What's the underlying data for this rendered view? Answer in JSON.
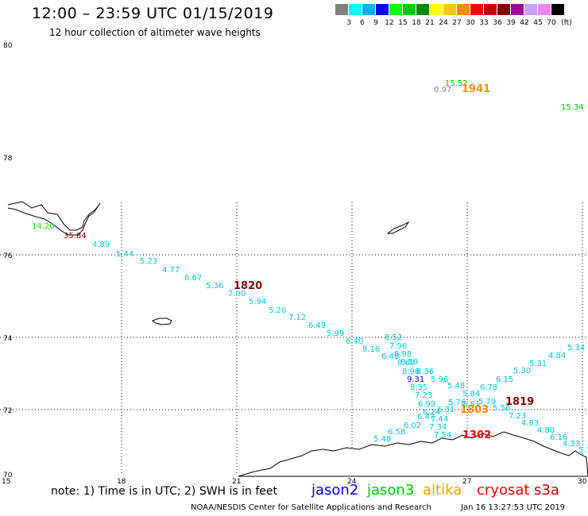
{
  "title": "12:00 – 23:59 UTC 01/15/2019",
  "subtitle": "12 hour collection of altimeter wave heights",
  "colorbar": {
    "unit": "(ft)",
    "bins": [
      {
        "label": "3",
        "color": "#808080"
      },
      {
        "label": "6",
        "color": "#00ffff"
      },
      {
        "label": "9",
        "color": "#00b0ff"
      },
      {
        "label": "12",
        "color": "#0000ff"
      },
      {
        "label": "15",
        "color": "#00ff00"
      },
      {
        "label": "18",
        "color": "#00c800"
      },
      {
        "label": "21",
        "color": "#008c00"
      },
      {
        "label": "24",
        "color": "#ffff00"
      },
      {
        "label": "27",
        "color": "#ffc800"
      },
      {
        "label": "30",
        "color": "#ff8c00"
      },
      {
        "label": "33",
        "color": "#ff0000"
      },
      {
        "label": "36",
        "color": "#c80000"
      },
      {
        "label": "39",
        "color": "#800000"
      },
      {
        "label": "42",
        "color": "#a000a0"
      },
      {
        "label": "45",
        "color": "#c8a0ff"
      },
      {
        "label": "70",
        "color": "#ff80ff"
      },
      {
        "label": "",
        "color": "#000000"
      }
    ]
  },
  "axes": {
    "lat_labels": [
      "80",
      "78",
      "76",
      "74",
      "72",
      "70"
    ],
    "lon_labels": [
      "15",
      "18",
      "21",
      "24",
      "27",
      "30"
    ]
  },
  "pass_times": [
    {
      "text": "1941",
      "color": "#ff8c00"
    },
    {
      "text": "1820",
      "color": "#800000"
    },
    {
      "text": "1819",
      "color": "#800000"
    },
    {
      "text": "1803",
      "color": "#ff8c00"
    },
    {
      "text": "1302",
      "color": "#ff0000"
    }
  ],
  "wave_heights": [
    {
      "text": "15.52",
      "color": "#00c800"
    },
    {
      "text": "0.97",
      "color": "#808080"
    },
    {
      "text": "15.34",
      "color": "#00c800"
    },
    {
      "text": "14.20",
      "color": "#00ff00"
    },
    {
      "text": "35.84",
      "color": "#800000"
    },
    {
      "text": "4.89",
      "color": "#00c8e0"
    },
    {
      "text": "5.44",
      "color": "#00c8e0"
    },
    {
      "text": "5.23",
      "color": "#00c8e0"
    },
    {
      "text": "4.77",
      "color": "#00c8e0"
    },
    {
      "text": "6.67",
      "color": "#00c8e0"
    },
    {
      "text": "5.36",
      "color": "#00c8e0"
    },
    {
      "text": "7.00",
      "color": "#00c8e0"
    },
    {
      "text": "5.94",
      "color": "#00c8e0"
    },
    {
      "text": "5.20",
      "color": "#00c8e0"
    },
    {
      "text": "7.12",
      "color": "#00c8e0"
    },
    {
      "text": "6.49",
      "color": "#00c8e0"
    },
    {
      "text": "5.99",
      "color": "#00c8e0"
    },
    {
      "text": "6.40",
      "color": "#00c8e0"
    },
    {
      "text": "8.16",
      "color": "#00c8e0"
    },
    {
      "text": "8.52",
      "color": "#00c8e0"
    },
    {
      "text": "7.96",
      "color": "#00c8e0"
    },
    {
      "text": "6.48",
      "color": "#00c8e0"
    },
    {
      "text": "8.98",
      "color": "#00c8e0"
    },
    {
      "text": "8.60",
      "color": "#00c8e0"
    },
    {
      "text": "8.59",
      "color": "#00c8e0"
    },
    {
      "text": "8.98",
      "color": "#00c8e0"
    },
    {
      "text": "8.36",
      "color": "#00c8e0"
    },
    {
      "text": "9.31",
      "color": "#0000ff"
    },
    {
      "text": "5.96",
      "color": "#00c8e0"
    },
    {
      "text": "8.35",
      "color": "#00c8e0"
    },
    {
      "text": "5.48",
      "color": "#00c8e0"
    },
    {
      "text": "7.23",
      "color": "#00c8e0"
    },
    {
      "text": "5.84",
      "color": "#00c8e0"
    },
    {
      "text": "5.76",
      "color": "#00c8e0"
    },
    {
      "text": "6.99",
      "color": "#00c8e0"
    },
    {
      "text": "6.31",
      "color": "#00c8e0"
    },
    {
      "text": "6.24",
      "color": "#00c8e0"
    },
    {
      "text": "6.47",
      "color": "#00c8e0"
    },
    {
      "text": "7.44",
      "color": "#00c8e0"
    },
    {
      "text": "6.02",
      "color": "#00c8e0"
    },
    {
      "text": "7.34",
      "color": "#00c8e0"
    },
    {
      "text": "6.58",
      "color": "#00c8e0"
    },
    {
      "text": "7.54",
      "color": "#00c8e0"
    },
    {
      "text": "5.48",
      "color": "#00c8e0"
    },
    {
      "text": "5.81",
      "color": "#00c8e0"
    },
    {
      "text": "5.79",
      "color": "#00c8e0"
    },
    {
      "text": "6.78",
      "color": "#00c8e0"
    },
    {
      "text": "6.15",
      "color": "#00c8e0"
    },
    {
      "text": "5.30",
      "color": "#00c8e0"
    },
    {
      "text": "5.31",
      "color": "#00c8e0"
    },
    {
      "text": "4.84",
      "color": "#00c8e0"
    },
    {
      "text": "5.34",
      "color": "#00c8e0"
    },
    {
      "text": "5.56",
      "color": "#00c8e0"
    },
    {
      "text": "7.23",
      "color": "#00c8e0"
    },
    {
      "text": "4.83",
      "color": "#00c8e0"
    },
    {
      "text": "4.80",
      "color": "#00c8e0"
    },
    {
      "text": "6.16",
      "color": "#00c8e0"
    },
    {
      "text": "4.33",
      "color": "#00c8e0"
    },
    {
      "text": "5.1",
      "color": "#00c8e0"
    }
  ],
  "note": "note:  1) Time is in UTC;  2) SWH is in feet",
  "satellites": [
    {
      "name": "jason2",
      "color": "#0000ff"
    },
    {
      "name": "jason3",
      "color": "#00c800"
    },
    {
      "name": "altika",
      "color": "#ffa000"
    },
    {
      "name": "cryosat",
      "color": "#ff0000"
    },
    {
      "name": "s3a",
      "color": "#c80000"
    }
  ],
  "credit": "NOAA/NESDIS Center for Satellite Applications and Research",
  "timestamp": "Jan 16 13:27:53 UTC 2019"
}
